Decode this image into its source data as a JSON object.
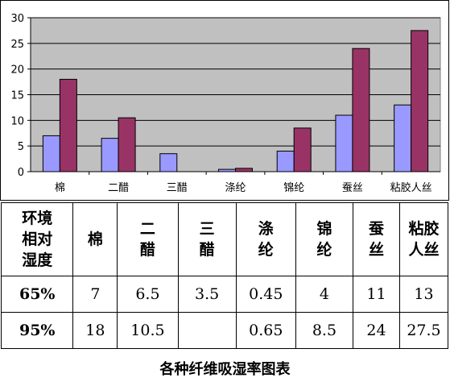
{
  "chart_data": {
    "type": "bar",
    "categories": [
      "棉",
      "二醋",
      "三醋",
      "涤纶",
      "锦纶",
      "蚕丝",
      "粘胶人丝"
    ],
    "series": [
      {
        "name": "65%",
        "values": [
          7,
          6.5,
          3.5,
          0.45,
          4,
          11,
          13
        ],
        "color": "#9999ff"
      },
      {
        "name": "95%",
        "values": [
          18,
          10.5,
          null,
          0.65,
          8.5,
          24,
          27.5
        ],
        "color": "#993366"
      }
    ],
    "ylim": [
      0,
      30
    ],
    "yticks": [
      0,
      5,
      10,
      15,
      20,
      25,
      30
    ],
    "grid": true,
    "legend": "none",
    "plot_background": "#c0c0c0"
  },
  "table": {
    "header": [
      "环境\n相对\n湿度",
      "棉",
      "二\n醋",
      "三\n醋",
      "涤\n纶",
      "锦\n纶",
      "蚕\n丝",
      "粘胶\n人丝"
    ],
    "rows": [
      [
        "65%",
        "7",
        "6.5",
        "3.5",
        "0.45",
        "4",
        "11",
        "13"
      ],
      [
        "95%",
        "18",
        "10.5",
        "",
        "0.65",
        "8.5",
        "24",
        "27.5"
      ]
    ]
  },
  "caption": "各种纤维吸湿率图表"
}
